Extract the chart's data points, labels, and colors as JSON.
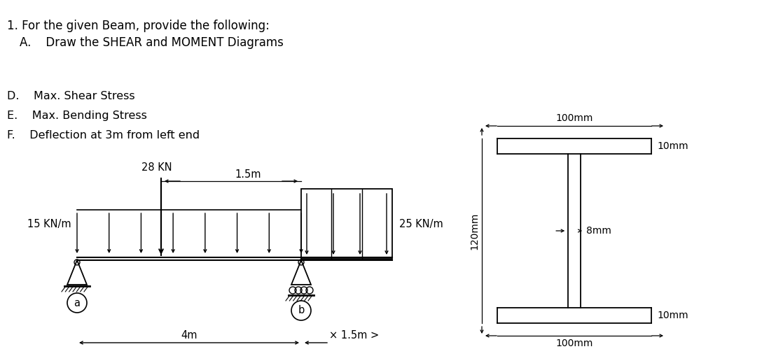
{
  "title_line1": "1. For the given Beam, provide the following:",
  "title_line2": "A.    Draw the SHEAR and MOMENT Diagrams",
  "items": [
    "D.    Max. Shear Stress",
    "E.    Max. Bending Stress",
    "F.    Deflection at 3m from left end"
  ],
  "load_28kn": "28 KN",
  "dist_1": "1.5m",
  "dist_4m": "4m",
  "dist_15": "1.5m",
  "load_15": "15 KN/m",
  "load_25": "25 KN/m",
  "label_a": "a",
  "label_b": "b",
  "section_100mm_top": "100mm",
  "section_10mm_top": "10mm",
  "section_8mm": "8mm",
  "section_120mm": "120mm",
  "section_10mm_bot": "10mm",
  "section_100mm_bot": "100mm",
  "bg_color": "#ffffff",
  "line_color": "#000000"
}
